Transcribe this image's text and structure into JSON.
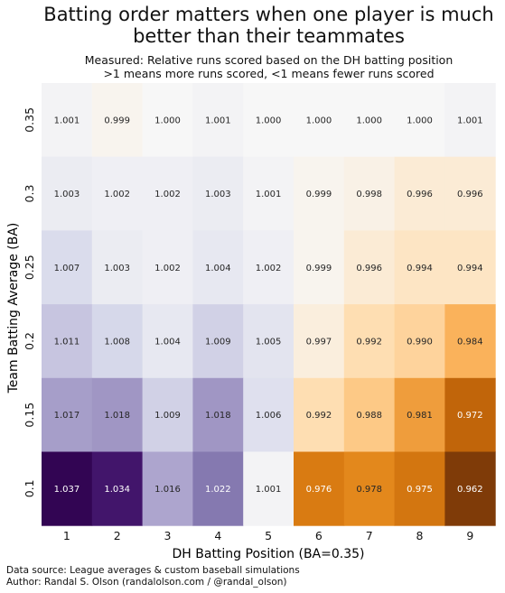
{
  "chart_data": {
    "type": "heatmap",
    "title_lines": [
      "Batting order matters when one player is much",
      "better than their teammates"
    ],
    "subtitle_lines": [
      "Measured: Relative runs scored based on the DH batting position",
      ">1 means more runs scored, <1 means fewer runs scored"
    ],
    "xlabel": "DH Batting Position (BA=0.35)",
    "ylabel": "Team Batting Average (BA)",
    "x_categories": [
      "1",
      "2",
      "3",
      "4",
      "5",
      "6",
      "7",
      "8",
      "9"
    ],
    "y_categories": [
      "0.35",
      "0.3",
      "0.25",
      "0.2",
      "0.15",
      "0.1"
    ],
    "values": [
      [
        1.001,
        0.999,
        1.0,
        1.001,
        1.0,
        1.0,
        1.0,
        1.0,
        1.001
      ],
      [
        1.003,
        1.002,
        1.002,
        1.003,
        1.001,
        0.999,
        0.998,
        0.996,
        0.996
      ],
      [
        1.007,
        1.003,
        1.002,
        1.004,
        1.002,
        0.999,
        0.996,
        0.994,
        0.994
      ],
      [
        1.011,
        1.008,
        1.004,
        1.009,
        1.005,
        0.997,
        0.992,
        0.99,
        0.984
      ],
      [
        1.017,
        1.018,
        1.009,
        1.018,
        1.006,
        0.992,
        0.988,
        0.981,
        0.972
      ],
      [
        1.037,
        1.034,
        1.016,
        1.022,
        1.001,
        0.976,
        0.978,
        0.975,
        0.962
      ]
    ],
    "colormap": "PuOr",
    "color_range": [
      0.962,
      1.038
    ],
    "grid": false,
    "legend": "none"
  },
  "footer": {
    "source": "Data source: League averages & custom baseball simulations",
    "author": "Author: Randal S. Olson (randalolson.com / @randal_olson)"
  }
}
